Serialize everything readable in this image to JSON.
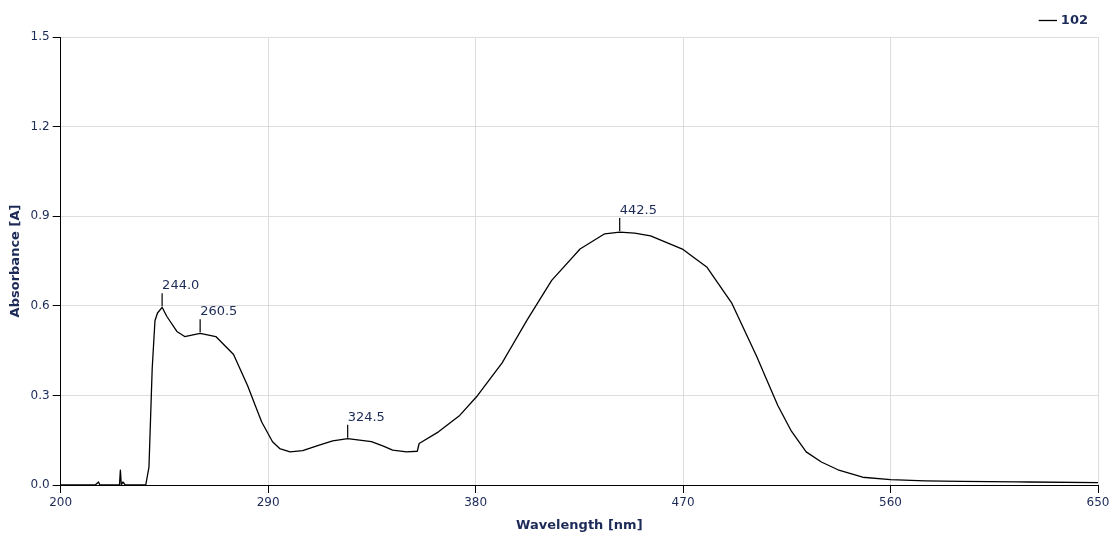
{
  "chart_data": {
    "type": "line",
    "xlabel": "Wavelength [nm]",
    "ylabel": "Absorbance [A]",
    "xlim": [
      200,
      650
    ],
    "xticks": [
      200,
      290,
      380,
      470,
      560,
      650
    ],
    "ylim": [
      0,
      1.5
    ],
    "yticks": [
      {
        "value": 0,
        "label": "0.0"
      },
      0.3,
      0.6,
      0.9,
      1.2,
      1.5
    ],
    "grid": true,
    "legend": "top right",
    "marker": "none",
    "line_style": "solid",
    "series": [
      {
        "name": "102",
        "color": "#000000",
        "x": [
          200,
          215,
          216.4,
          217,
          225.5,
          225.9,
          226.3,
          227,
          228,
          236.9,
          238.3,
          239.7,
          240.9,
          242,
          244,
          246,
          250.4,
          253.8,
          260.5,
          267.3,
          275,
          281.1,
          287.2,
          291.9,
          295,
          299.5,
          305,
          311.8,
          318,
          324.5,
          334.8,
          340,
          344,
          350.1,
          354.7,
          355.5,
          363.9,
          373.1,
          380.8,
          391.5,
          402.3,
          413,
          425.3,
          436,
          442.5,
          449,
          455.9,
          469.7,
          480.4,
          491.2,
          501.9,
          511.1,
          517,
          523.4,
          530,
          537.2,
          547.9,
          560,
          575,
          590.8,
          620,
          650
        ],
        "values": [
          0,
          0,
          0.01,
          0,
          0,
          0.05,
          0,
          0.01,
          0,
          0,
          0.06,
          0.39,
          0.55,
          0.576,
          0.595,
          0.565,
          0.514,
          0.497,
          0.508,
          0.497,
          0.437,
          0.332,
          0.211,
          0.145,
          0.122,
          0.111,
          0.115,
          0.133,
          0.148,
          0.155,
          0.145,
          0.13,
          0.117,
          0.111,
          0.113,
          0.139,
          0.178,
          0.233,
          0.299,
          0.409,
          0.552,
          0.685,
          0.79,
          0.841,
          0.847,
          0.843,
          0.834,
          0.79,
          0.729,
          0.608,
          0.431,
          0.266,
          0.18,
          0.111,
          0.077,
          0.051,
          0.026,
          0.018,
          0.014,
          0.012,
          0.01,
          0.008
        ]
      }
    ],
    "annotations": [
      {
        "text": "244.0",
        "x": 244,
        "y": 0.595
      },
      {
        "text": "260.5",
        "x": 260.5,
        "y": 0.508
      },
      {
        "text": "324.5",
        "x": 324.5,
        "y": 0.155
      },
      {
        "text": "442.5",
        "x": 442.5,
        "y": 0.847
      }
    ]
  }
}
